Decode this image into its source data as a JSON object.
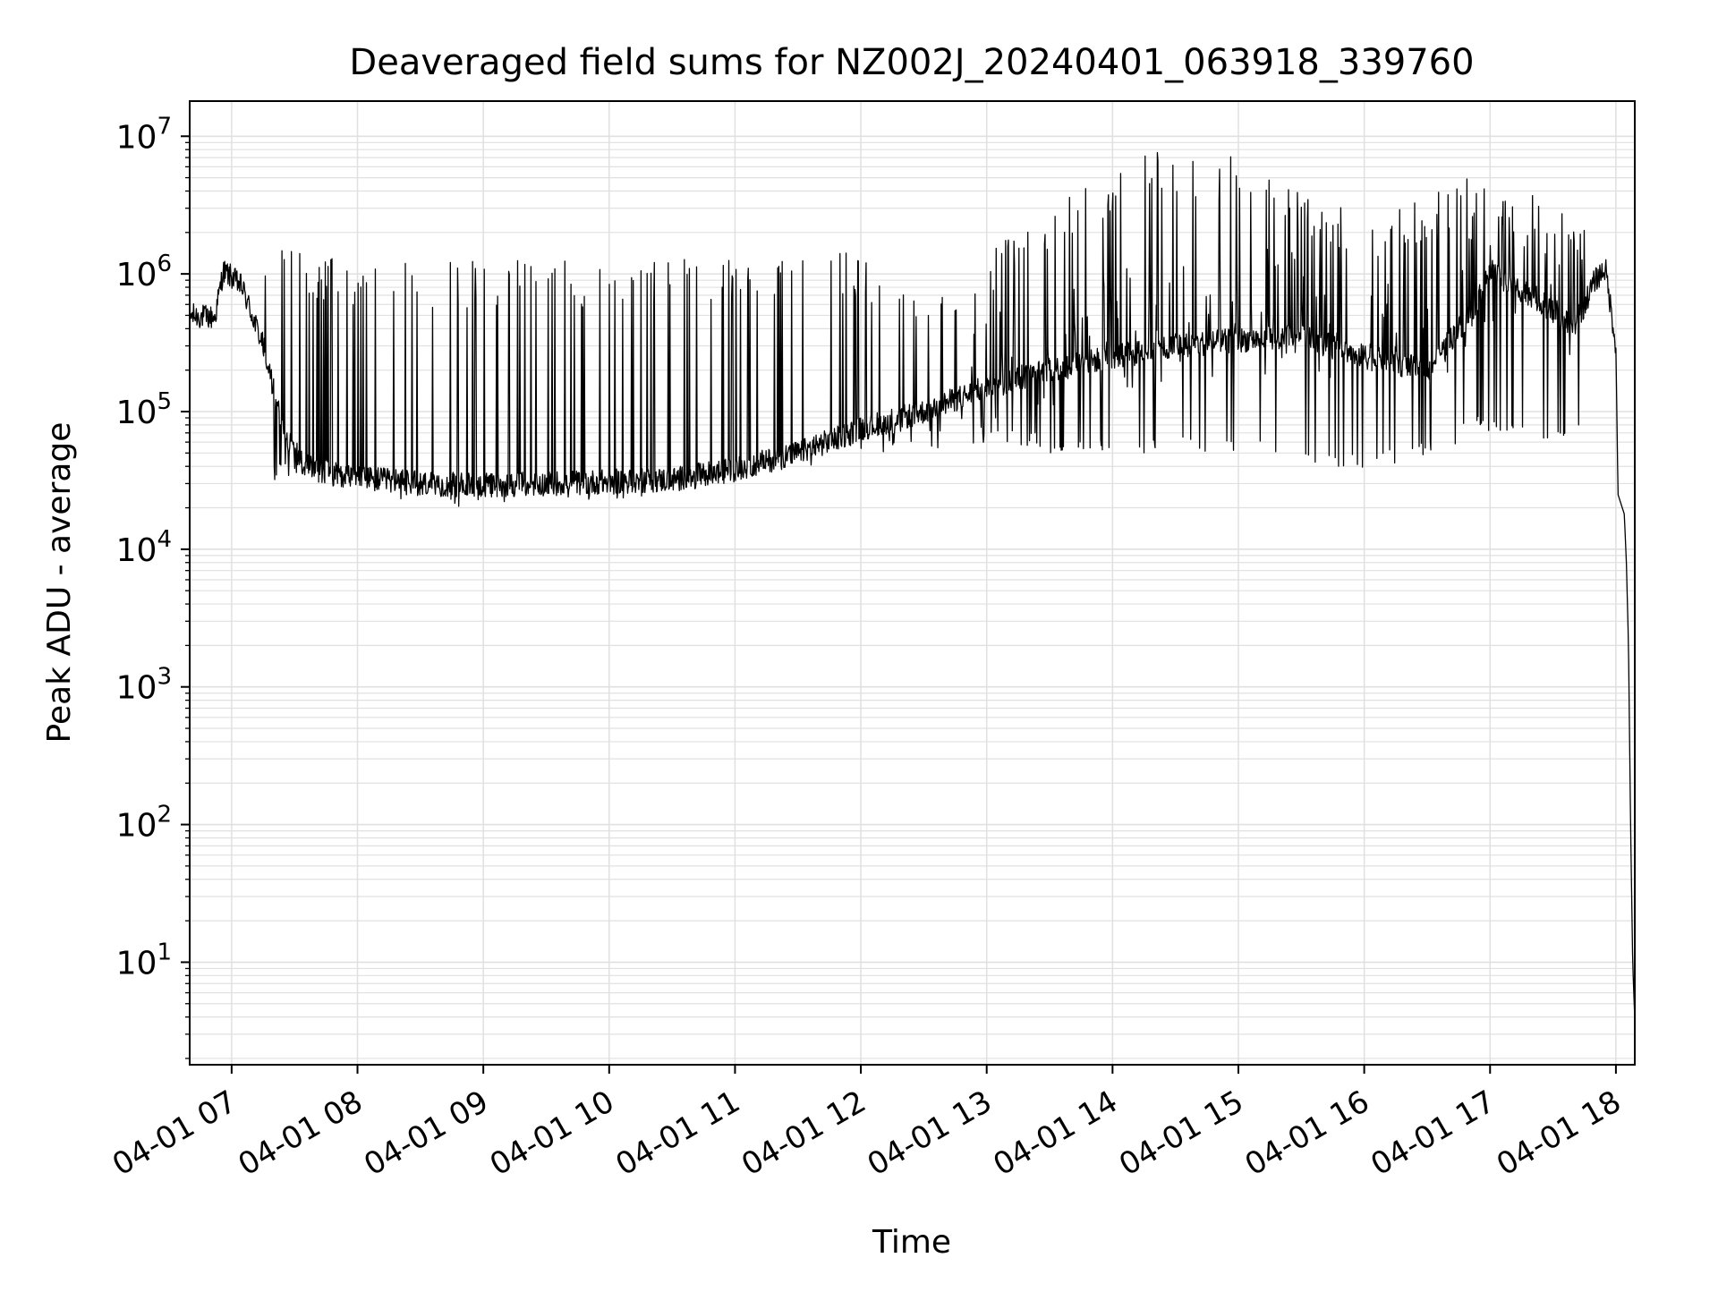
{
  "chart_data": {
    "type": "line",
    "title": "Deaveraged field sums for NZ002J_20240401_063918_339760",
    "xlabel": "Time",
    "ylabel": "Peak ADU - average",
    "x_axis_type": "date",
    "xlim": [
      "2024-04-01 06:40",
      "2024-04-01 18:09"
    ],
    "ylim": [
      1.8,
      18000000
    ],
    "y_scale": "log",
    "x_ticks": [
      {
        "value": "2024-04-01 07:00",
        "label": "04-01 07"
      },
      {
        "value": "2024-04-01 08:00",
        "label": "04-01 08"
      },
      {
        "value": "2024-04-01 09:00",
        "label": "04-01 09"
      },
      {
        "value": "2024-04-01 10:00",
        "label": "04-01 10"
      },
      {
        "value": "2024-04-01 11:00",
        "label": "04-01 11"
      },
      {
        "value": "2024-04-01 12:00",
        "label": "04-01 12"
      },
      {
        "value": "2024-04-01 13:00",
        "label": "04-01 13"
      },
      {
        "value": "2024-04-01 14:00",
        "label": "04-01 14"
      },
      {
        "value": "2024-04-01 15:00",
        "label": "04-01 15"
      },
      {
        "value": "2024-04-01 16:00",
        "label": "04-01 16"
      },
      {
        "value": "2024-04-01 17:00",
        "label": "04-01 17"
      },
      {
        "value": "2024-04-01 18:00",
        "label": "04-01 18"
      }
    ],
    "y_ticks": [
      {
        "value": 10,
        "base": "10",
        "exp": "1"
      },
      {
        "value": 100,
        "base": "10",
        "exp": "2"
      },
      {
        "value": 1000,
        "base": "10",
        "exp": "3"
      },
      {
        "value": 10000,
        "base": "10",
        "exp": "4"
      },
      {
        "value": 100000,
        "base": "10",
        "exp": "5"
      },
      {
        "value": 1000000,
        "base": "10",
        "exp": "6"
      },
      {
        "value": 10000000,
        "base": "10",
        "exp": "7"
      }
    ],
    "grid": true,
    "line_color": "#000000",
    "grid_color": "#e0e0e0",
    "baseline_envelope": [
      {
        "t": "2024-04-01 06:40",
        "y": 500000
      },
      {
        "t": "2024-04-01 06:52",
        "y": 480000
      },
      {
        "t": "2024-04-01 06:56",
        "y": 1050000
      },
      {
        "t": "2024-04-01 07:00",
        "y": 950000
      },
      {
        "t": "2024-04-01 07:05",
        "y": 800000
      },
      {
        "t": "2024-04-01 07:15",
        "y": 300000
      },
      {
        "t": "2024-04-01 07:25",
        "y": 70000
      },
      {
        "t": "2024-04-01 07:35",
        "y": 40000
      },
      {
        "t": "2024-04-01 08:00",
        "y": 33000
      },
      {
        "t": "2024-04-01 08:30",
        "y": 30000
      },
      {
        "t": "2024-04-01 09:00",
        "y": 29000
      },
      {
        "t": "2024-04-01 09:30",
        "y": 30000
      },
      {
        "t": "2024-04-01 10:00",
        "y": 31000
      },
      {
        "t": "2024-04-01 10:30",
        "y": 32000
      },
      {
        "t": "2024-04-01 11:00",
        "y": 38000
      },
      {
        "t": "2024-04-01 11:30",
        "y": 50000
      },
      {
        "t": "2024-04-01 12:00",
        "y": 75000
      },
      {
        "t": "2024-04-01 12:30",
        "y": 100000
      },
      {
        "t": "2024-04-01 13:00",
        "y": 150000
      },
      {
        "t": "2024-04-01 13:30",
        "y": 200000
      },
      {
        "t": "2024-04-01 14:00",
        "y": 250000
      },
      {
        "t": "2024-04-01 14:30",
        "y": 300000
      },
      {
        "t": "2024-04-01 15:00",
        "y": 330000
      },
      {
        "t": "2024-04-01 15:30",
        "y": 350000
      },
      {
        "t": "2024-04-01 16:00",
        "y": 250000
      },
      {
        "t": "2024-04-01 16:30",
        "y": 200000
      },
      {
        "t": "2024-04-01 16:50",
        "y": 500000
      },
      {
        "t": "2024-04-01 17:00",
        "y": 1000000
      },
      {
        "t": "2024-04-01 17:20",
        "y": 700000
      },
      {
        "t": "2024-04-01 17:40",
        "y": 400000
      },
      {
        "t": "2024-04-01 17:50",
        "y": 900000
      },
      {
        "t": "2024-04-01 17:55",
        "y": 1100000
      },
      {
        "t": "2024-04-01 18:00",
        "y": 300000
      },
      {
        "t": "2024-04-01 18:01",
        "y": 25000
      },
      {
        "t": "2024-04-01 18:04",
        "y": 18000
      },
      {
        "t": "2024-04-01 18:05",
        "y": 8000
      },
      {
        "t": "2024-04-01 18:06",
        "y": 2000
      },
      {
        "t": "2024-04-01 18:07",
        "y": 100
      },
      {
        "t": "2024-04-01 18:08",
        "y": 10
      },
      {
        "t": "2024-04-01 18:09",
        "y": 3.8
      }
    ],
    "spike_max_envelope": [
      {
        "t": "2024-04-01 07:15",
        "y": 1700000
      },
      {
        "t": "2024-04-01 08:00",
        "y": 1300000
      },
      {
        "t": "2024-04-01 09:00",
        "y": 1250000
      },
      {
        "t": "2024-04-01 10:00",
        "y": 1300000
      },
      {
        "t": "2024-04-01 11:00",
        "y": 1400000
      },
      {
        "t": "2024-04-01 12:00",
        "y": 1500000
      },
      {
        "t": "2024-04-01 12:30",
        "y": 800000
      },
      {
        "t": "2024-04-01 13:30",
        "y": 3000000
      },
      {
        "t": "2024-04-01 14:20",
        "y": 8500000
      },
      {
        "t": "2024-04-01 15:10",
        "y": 7000000
      },
      {
        "t": "2024-04-01 16:00",
        "y": 2500000
      },
      {
        "t": "2024-04-01 16:50",
        "y": 5500000
      },
      {
        "t": "2024-04-01 17:30",
        "y": 3500000
      }
    ],
    "spike_min_envelope": [
      {
        "t": "2024-04-01 07:30",
        "y": 32000
      },
      {
        "t": "2024-04-01 08:00",
        "y": 25000
      },
      {
        "t": "2024-04-01 09:00",
        "y": 19000
      },
      {
        "t": "2024-04-01 10:00",
        "y": 22000
      },
      {
        "t": "2024-04-01 11:00",
        "y": 30000
      },
      {
        "t": "2024-04-01 12:00",
        "y": 50000
      },
      {
        "t": "2024-04-01 13:00",
        "y": 55000
      },
      {
        "t": "2024-04-01 14:00",
        "y": 45000
      },
      {
        "t": "2024-04-01 15:00",
        "y": 50000
      },
      {
        "t": "2024-04-01 16:00",
        "y": 35000
      },
      {
        "t": "2024-04-01 17:00",
        "y": 70000
      },
      {
        "t": "2024-04-01 17:45",
        "y": 60000
      }
    ]
  }
}
